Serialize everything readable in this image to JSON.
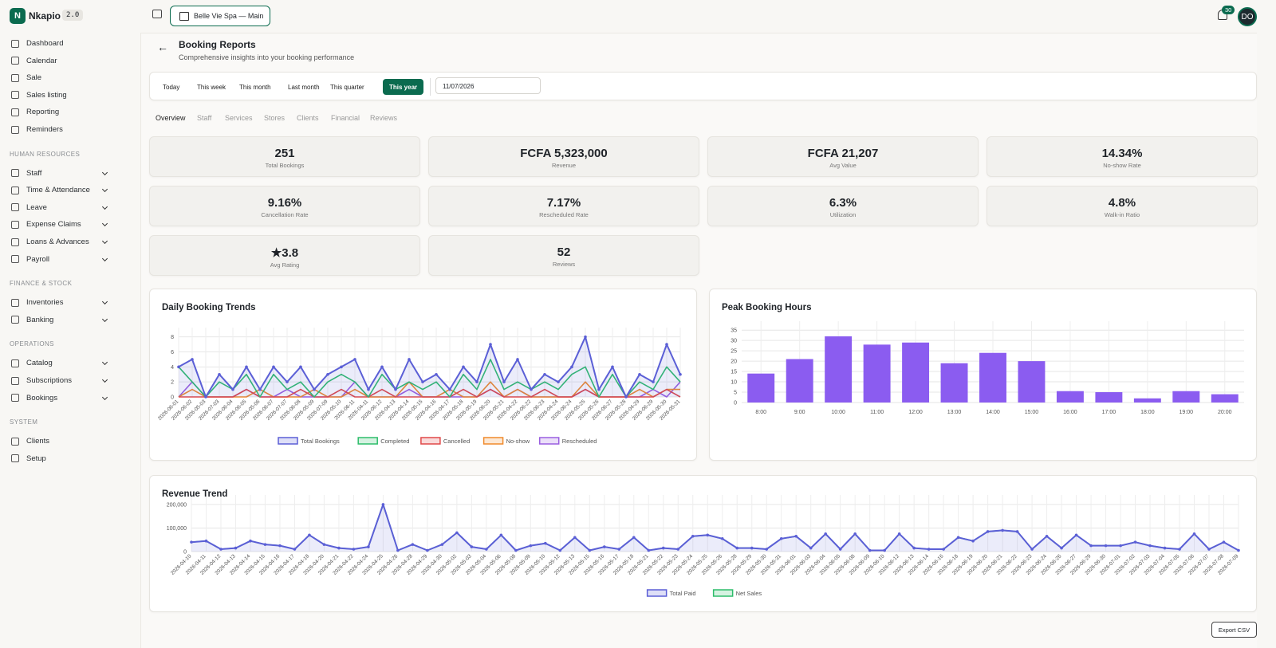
{
  "brand": {
    "initial": "N",
    "name": "Nkapio",
    "version": "2.0"
  },
  "store": "Belle Vie Spa — Main",
  "notifications": "30",
  "avatar": "DO",
  "nav": {
    "main": [
      "Dashboard",
      "Calendar",
      "Sale",
      "Sales listing",
      "Reporting",
      "Reminders"
    ],
    "sections": [
      {
        "title": "HUMAN RESOURCES",
        "expandable": true,
        "items": [
          "Staff",
          "Time & Attendance",
          "Leave",
          "Expense Claims",
          "Loans & Advances",
          "Payroll"
        ]
      },
      {
        "title": "FINANCE & STOCK",
        "expandable": true,
        "items": [
          "Inventories",
          "Banking"
        ]
      },
      {
        "title": "OPERATIONS",
        "expandable": true,
        "items": [
          "Catalog",
          "Subscriptions",
          "Bookings"
        ]
      },
      {
        "title": "SYSTEM",
        "expandable": false,
        "items": [
          "Clients",
          "Setup"
        ]
      }
    ]
  },
  "header": {
    "title": "Booking Reports",
    "subtitle": "Comprehensive insights into your booking performance"
  },
  "filters": [
    "Today",
    "This week",
    "This month",
    "Last month",
    "This quarter",
    "This year"
  ],
  "active_filter": 5,
  "date": "11/07/2026",
  "tabs": [
    "Overview",
    "Staff",
    "Services",
    "Stores",
    "Clients",
    "Financial",
    "Reviews"
  ],
  "active_tab": 0,
  "kpis": [
    {
      "value": "251",
      "label": "Total Bookings"
    },
    {
      "value": "FCFA 5,323,000",
      "label": "Revenue"
    },
    {
      "value": "FCFA 21,207",
      "label": "Avg Value"
    },
    {
      "value": "14.34%",
      "label": "No-show Rate"
    },
    {
      "value": "9.16%",
      "label": "Cancellation Rate"
    },
    {
      "value": "7.17%",
      "label": "Rescheduled Rate"
    },
    {
      "value": "6.3%",
      "label": "Utilization"
    },
    {
      "value": "4.8%",
      "label": "Walk-in Ratio"
    },
    {
      "value": "★3.8",
      "label": "Avg Rating"
    },
    {
      "value": "52",
      "label": "Reviews"
    }
  ],
  "chart_data": [
    {
      "type": "line",
      "title": "Daily Booking Trends",
      "categories": [
        "2026-06-01",
        "2026-06-02",
        "2026-05-03",
        "2026-07-03",
        "2026-06-04",
        "2026-06-05",
        "2026-05-06",
        "2026-06-07",
        "2026-07-07",
        "2026-06-08",
        "2026-05-09",
        "2026-07-09",
        "2026-05-10",
        "2026-06-11",
        "2026-04-11",
        "2026-06-12",
        "2026-04-13",
        "2026-04-14",
        "2026-05-15",
        "2026-04-16",
        "2026-04-17",
        "2026-05-18",
        "2026-05-19",
        "2026-06-20",
        "2026-05-21",
        "2026-04-22",
        "2026-06-22",
        "2026-06-23",
        "2026-04-24",
        "2026-06-24",
        "2026-05-25",
        "2026-05-26",
        "2026-06-27",
        "2026-05-28",
        "2026-04-29",
        "2026-06-29",
        "2026-05-30",
        "2026-05-31"
      ],
      "series": [
        {
          "name": "Total Bookings",
          "color": "#5b5fd6",
          "values": [
            4,
            5,
            0,
            3,
            1,
            4,
            1,
            4,
            2,
            4,
            1,
            3,
            4,
            5,
            1,
            4,
            1,
            5,
            2,
            3,
            1,
            4,
            2,
            7,
            2,
            5,
            1,
            3,
            2,
            4,
            8,
            1,
            4,
            0,
            3,
            2,
            7,
            3
          ]
        },
        {
          "name": "Completed",
          "color": "#2ebd6b",
          "values": [
            4,
            2,
            0,
            2,
            1,
            3,
            0,
            3,
            1,
            2,
            0,
            2,
            3,
            2,
            0,
            3,
            1,
            2,
            1,
            2,
            0,
            3,
            1,
            5,
            1,
            2,
            1,
            2,
            1,
            3,
            4,
            0,
            3,
            0,
            2,
            1,
            4,
            2
          ]
        },
        {
          "name": "Cancelled",
          "color": "#e04848",
          "values": [
            0,
            0,
            0,
            0,
            0,
            1,
            0,
            0,
            0,
            1,
            0,
            0,
            1,
            0,
            0,
            1,
            0,
            0,
            0,
            0,
            0,
            1,
            0,
            1,
            0,
            0,
            0,
            1,
            0,
            0,
            1,
            0,
            0,
            0,
            0,
            0,
            1,
            0
          ]
        },
        {
          "name": "No-show",
          "color": "#f08a2c",
          "values": [
            0,
            1,
            0,
            0,
            0,
            0,
            1,
            0,
            0,
            0,
            1,
            0,
            0,
            1,
            0,
            0,
            0,
            2,
            0,
            0,
            1,
            0,
            0,
            2,
            0,
            1,
            0,
            0,
            0,
            0,
            2,
            0,
            0,
            0,
            1,
            0,
            1,
            1
          ]
        },
        {
          "name": "Rescheduled",
          "color": "#9a5ee0",
          "values": [
            0,
            2,
            0,
            0,
            0,
            1,
            0,
            0,
            1,
            0,
            0,
            0,
            0,
            2,
            0,
            0,
            0,
            1,
            0,
            0,
            0,
            0,
            0,
            1,
            0,
            1,
            0,
            0,
            0,
            0,
            1,
            0,
            0,
            0,
            0,
            1,
            0,
            2
          ]
        }
      ],
      "ylim": [
        0,
        8.6
      ],
      "yticks": [
        0,
        2,
        4,
        6,
        8
      ],
      "grid": true
    },
    {
      "type": "bar",
      "title": "Peak Booking Hours",
      "categories": [
        "8:00",
        "9:00",
        "10:00",
        "11:00",
        "12:00",
        "13:00",
        "14:00",
        "15:00",
        "16:00",
        "17:00",
        "18:00",
        "19:00",
        "20:00"
      ],
      "values": [
        14,
        21,
        32,
        28,
        29,
        19,
        24,
        20,
        5.5,
        5,
        2,
        5.5,
        4
      ],
      "color": "#8b5cf0",
      "ylim": [
        0,
        37
      ],
      "yticks": [
        0,
        5,
        10,
        15,
        20,
        25,
        30,
        35
      ],
      "grid": true
    },
    {
      "type": "line",
      "title": "Revenue Trend",
      "categories": [
        "2026-04-10",
        "2026-04-11",
        "2026-04-12",
        "2026-04-13",
        "2026-04-14",
        "2026-04-15",
        "2026-04-16",
        "2026-04-17",
        "2026-04-18",
        "2026-04-20",
        "2026-04-21",
        "2026-04-22",
        "2026-04-24",
        "2026-04-25",
        "2026-04-26",
        "2026-04-28",
        "2026-04-29",
        "2026-04-30",
        "2026-05-02",
        "2026-05-03",
        "2026-05-04",
        "2026-05-06",
        "2026-05-08",
        "2026-05-09",
        "2026-05-10",
        "2026-05-12",
        "2026-05-13",
        "2026-05-15",
        "2026-05-16",
        "2026-05-17",
        "2026-05-18",
        "2026-05-21",
        "2026-05-22",
        "2026-05-23",
        "2026-05-24",
        "2026-05-25",
        "2026-05-26",
        "2026-05-28",
        "2026-05-29",
        "2026-05-30",
        "2026-05-31",
        "2026-06-01",
        "2026-06-03",
        "2026-06-04",
        "2026-06-05",
        "2026-06-08",
        "2026-06-09",
        "2026-06-10",
        "2026-06-12",
        "2026-06-13",
        "2026-06-14",
        "2026-06-16",
        "2026-06-18",
        "2026-06-19",
        "2026-06-20",
        "2026-06-21",
        "2026-06-22",
        "2026-06-23",
        "2026-06-24",
        "2026-06-26",
        "2026-06-27",
        "2026-06-29",
        "2026-06-30",
        "2026-07-01",
        "2026-07-02",
        "2026-07-03",
        "2026-07-04",
        "2026-07-05",
        "2026-07-06",
        "2026-07-07",
        "2026-07-08",
        "2026-07-09"
      ],
      "series": [
        {
          "name": "Total Paid",
          "color": "#5b5fd6",
          "values": [
            40000,
            45000,
            10000,
            15000,
            45000,
            30000,
            25000,
            10000,
            70000,
            30000,
            15000,
            10000,
            20000,
            200000,
            5000,
            30000,
            5000,
            30000,
            80000,
            20000,
            10000,
            70000,
            5000,
            25000,
            35000,
            5000,
            60000,
            5000,
            20000,
            10000,
            60000,
            5000,
            15000,
            10000,
            65000,
            70000,
            55000,
            15000,
            15000,
            10000,
            55000,
            65000,
            15000,
            75000,
            10000,
            75000,
            5000,
            5000,
            75000,
            15000,
            10000,
            10000,
            60000,
            45000,
            85000,
            90000,
            85000,
            10000,
            65000,
            15000,
            70000,
            25000,
            25000,
            25000,
            40000,
            25000,
            15000,
            10000,
            75000,
            10000,
            40000,
            5000
          ]
        },
        {
          "name": "Net Sales",
          "color": "#2ebd6b",
          "values": [
            40000,
            45000,
            10000,
            15000,
            45000,
            30000,
            25000,
            10000,
            70000,
            30000,
            15000,
            10000,
            20000,
            200000,
            5000,
            30000,
            5000,
            30000,
            80000,
            20000,
            10000,
            70000,
            5000,
            25000,
            35000,
            5000,
            60000,
            5000,
            20000,
            10000,
            60000,
            5000,
            15000,
            10000,
            65000,
            70000,
            55000,
            15000,
            15000,
            10000,
            55000,
            65000,
            15000,
            75000,
            10000,
            75000,
            5000,
            5000,
            75000,
            15000,
            10000,
            10000,
            60000,
            45000,
            85000,
            90000,
            85000,
            10000,
            65000,
            15000,
            70000,
            25000,
            25000,
            25000,
            40000,
            25000,
            15000,
            10000,
            75000,
            10000,
            40000,
            5000
          ]
        }
      ],
      "ylim": [
        0,
        220000
      ],
      "yticks": [
        0,
        {
          "value": 100000,
          "label": "100,000"
        },
        {
          "value": 200000,
          "label": "200,000"
        }
      ],
      "grid": true
    }
  ],
  "export": "Export CSV"
}
